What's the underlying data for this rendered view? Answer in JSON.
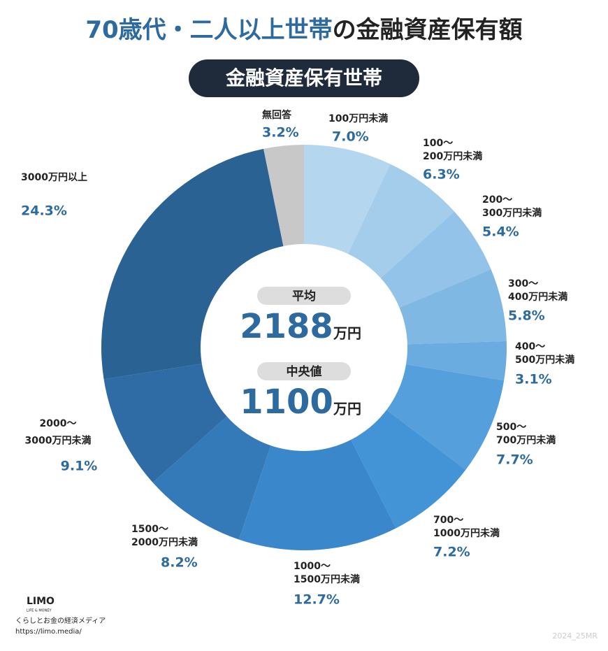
{
  "chart_data": {
    "type": "donut",
    "title": [
      "70歳代・二人以上世帯",
      "の金融資産保有額"
    ],
    "subtitle": "金融資産保有世帯",
    "categories": [
      [
        "100万円未満"
      ],
      [
        "100～",
        "200万円未満"
      ],
      [
        "200～",
        "300万円未満"
      ],
      [
        "300～",
        "400万円未満"
      ],
      [
        "400～",
        "500万円未満"
      ],
      [
        "500～",
        "700万円未満"
      ],
      [
        "700～",
        "1000万円未満"
      ],
      [
        "1000～",
        "1500万円未満"
      ],
      [
        "1500～",
        "2000万円未満"
      ],
      [
        "2000～",
        "3000万円未満"
      ],
      [
        "3000万円以上"
      ],
      [
        "無回答"
      ]
    ],
    "values": [
      7.0,
      6.3,
      5.4,
      5.8,
      3.1,
      7.7,
      7.2,
      12.7,
      8.2,
      9.1,
      24.3,
      3.2
    ],
    "value_labels": [
      "7.0%",
      "6.3%",
      "5.4%",
      "5.8%",
      "3.1%",
      "7.7%",
      "7.2%",
      "12.7%",
      "8.2%",
      "9.1%",
      "24.3%",
      "3.2%"
    ],
    "colors": [
      "#b5d6ef",
      "#a4cceb",
      "#93c3e8",
      "#80b8e4",
      "#6aace0",
      "#55a0dc",
      "#4394d6",
      "#3a88cb",
      "#347ab9",
      "#2f6ca5",
      "#2a6294",
      "#c8c8c8"
    ],
    "center": {
      "mean_label": "平均",
      "mean": "2188",
      "mean_unit": "万円",
      "median_label": "中央値",
      "median": "1100",
      "median_unit": "万円"
    },
    "footer": {
      "brand": "LIMO",
      "brand_sub": "LIFE & MONEY",
      "tagline": "くらしとお金の経済メディア",
      "url": "https://limo.media/",
      "code": "2024_25MR"
    }
  }
}
